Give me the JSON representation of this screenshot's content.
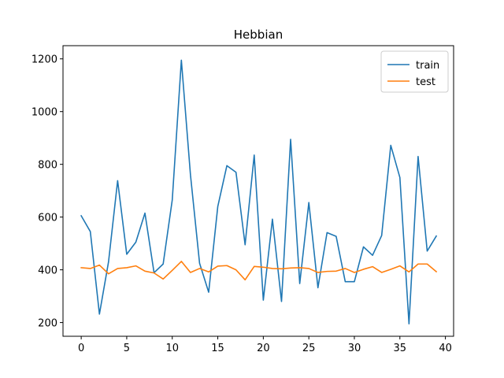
{
  "chart_data": {
    "type": "line",
    "title": "Hebbian",
    "xlabel": "",
    "ylabel": "",
    "xlim": [
      -2,
      40.9
    ],
    "ylim": [
      148,
      1250
    ],
    "x_ticks": [
      0,
      5,
      10,
      15,
      20,
      25,
      30,
      35,
      40
    ],
    "y_ticks": [
      200,
      400,
      600,
      800,
      1000,
      1200
    ],
    "grid": false,
    "legend_position": "top-right",
    "x": [
      0,
      1,
      2,
      3,
      4,
      5,
      6,
      7,
      8,
      9,
      10,
      11,
      12,
      13,
      14,
      15,
      16,
      17,
      18,
      19,
      20,
      21,
      22,
      23,
      24,
      25,
      26,
      27,
      28,
      29,
      30,
      31,
      32,
      33,
      34,
      35,
      36,
      37,
      38,
      39
    ],
    "series": [
      {
        "name": "train",
        "color": "#1f77b4",
        "values": [
          605,
          545,
          232,
          430,
          738,
          459,
          505,
          615,
          389,
          422,
          665,
          1195,
          760,
          425,
          315,
          640,
          795,
          770,
          495,
          835,
          285,
          592,
          280,
          895,
          348,
          655,
          332,
          541,
          527,
          355,
          355,
          487,
          455,
          530,
          872,
          750,
          195,
          830,
          471,
          528
        ]
      },
      {
        "name": "test",
        "color": "#ff7f0e",
        "values": [
          408,
          405,
          418,
          385,
          405,
          408,
          415,
          395,
          388,
          365,
          398,
          432,
          390,
          405,
          392,
          414,
          416,
          400,
          362,
          413,
          410,
          405,
          404,
          407,
          408,
          405,
          390,
          394,
          395,
          405,
          390,
          402,
          412,
          390,
          402,
          415,
          392,
          422,
          422,
          393
        ]
      }
    ]
  }
}
